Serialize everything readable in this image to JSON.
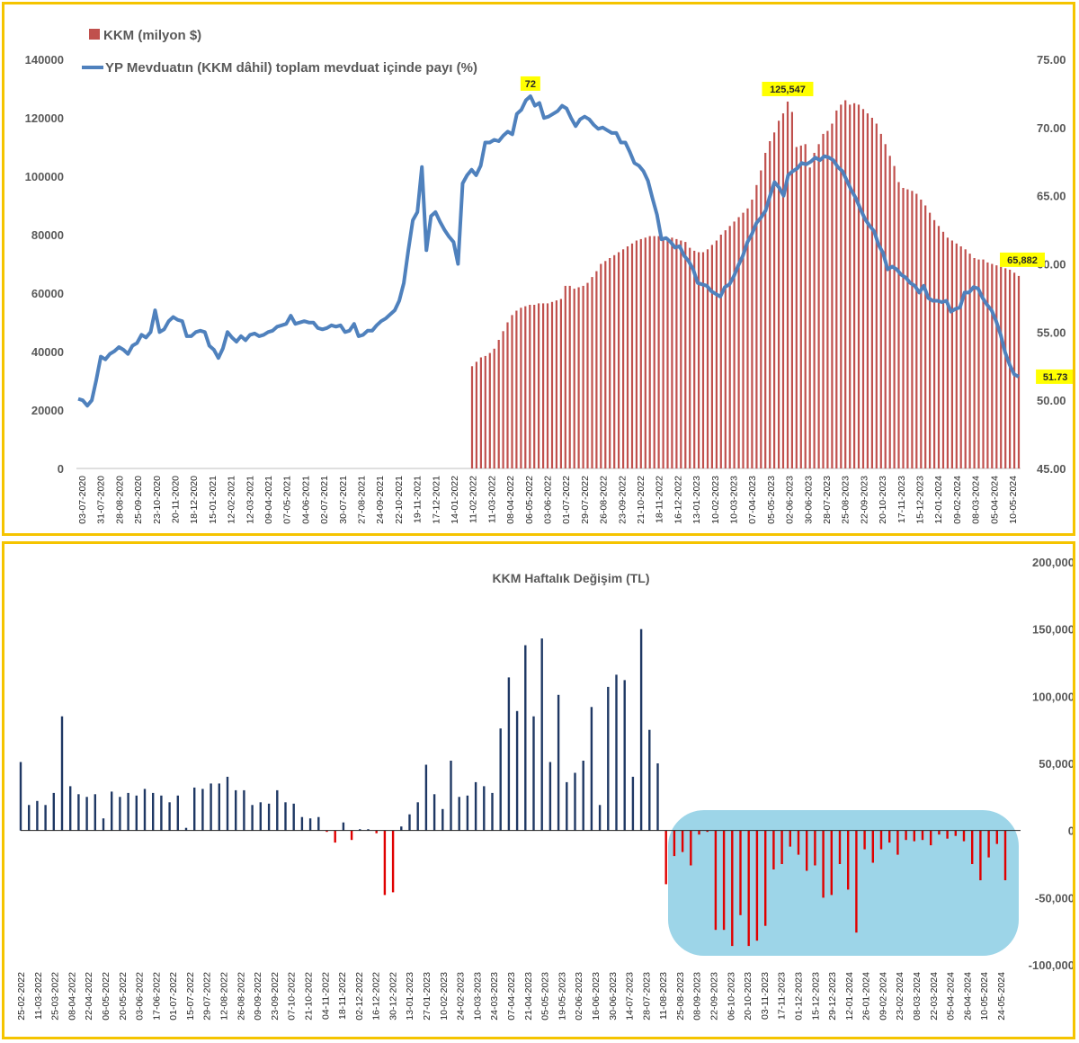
{
  "chart_data": [
    {
      "type": "bar+line",
      "title": "",
      "legend": {
        "placement": "top-left",
        "entries": [
          "KKM (milyon $)",
          "YP Mevduatın (KKM dâhil) toplam mevduat içinde payı (%)"
        ]
      },
      "colors": {
        "bar": "#c0504d",
        "line": "#4f81bd",
        "callout": "#ffff00"
      },
      "y_left": {
        "ylim": [
          0,
          140000
        ],
        "ticks": [
          "0",
          "20000",
          "40000",
          "60000",
          "80000",
          "100000",
          "120000",
          "140000"
        ]
      },
      "y_right": {
        "ylim": [
          45,
          75
        ],
        "ticks": [
          "45.00",
          "50.00",
          "55.00",
          "60.00",
          "65.00",
          "70.00",
          "75.00"
        ]
      },
      "x_tick_labels": [
        "03-07-2020",
        "31-07-2020",
        "28-08-2020",
        "25-09-2020",
        "23-10-2020",
        "20-11-2020",
        "18-12-2020",
        "15-01-2021",
        "12-02-2021",
        "12-03-2021",
        "09-04-2021",
        "07-05-2021",
        "04-06-2021",
        "02-07-2021",
        "30-07-2021",
        "27-08-2021",
        "24-09-2021",
        "22-10-2021",
        "19-11-2021",
        "17-12-2021",
        "14-01-2022",
        "11-02-2022",
        "11-03-2022",
        "08-04-2022",
        "06-05-2022",
        "03-06-2022",
        "01-07-2022",
        "29-07-2022",
        "26-08-2022",
        "23-09-2022",
        "21-10-2022",
        "18-11-2022",
        "16-12-2022",
        "13-01-2023",
        "10-02-2023",
        "10-03-2023",
        "07-04-2023",
        "05-05-2023",
        "02-06-2023",
        "30-06-2023",
        "28-07-2023",
        "25-08-2023",
        "22-09-2023",
        "20-10-2023",
        "17-11-2023",
        "15-12-2023",
        "12-01-2024",
        "09-02-2024",
        "08-03-2024",
        "05-04-2024",
        "10-05-2024"
      ],
      "line_series": {
        "name": "YP Mevduatın (KKM dâhil) toplam mevduat içinde payı (%)",
        "values": [
          50.1,
          50.0,
          49.6,
          50.0,
          51.5,
          53.2,
          53.0,
          53.4,
          53.6,
          53.9,
          53.7,
          53.4,
          54.0,
          54.2,
          54.8,
          54.6,
          55.0,
          56.6,
          55.0,
          55.2,
          55.8,
          56.1,
          55.9,
          55.8,
          54.7,
          54.7,
          55.0,
          55.1,
          55.0,
          54.0,
          53.7,
          53.1,
          53.8,
          55.0,
          54.6,
          54.3,
          54.7,
          54.4,
          54.8,
          54.9,
          54.7,
          54.8,
          55.0,
          55.1,
          55.4,
          55.5,
          55.6,
          56.2,
          55.6,
          55.7,
          55.8,
          55.7,
          55.7,
          55.3,
          55.2,
          55.3,
          55.5,
          55.4,
          55.5,
          55.0,
          55.1,
          55.6,
          54.7,
          54.8,
          55.1,
          55.1,
          55.5,
          55.8,
          56.0,
          56.3,
          56.6,
          57.3,
          58.6,
          61.0,
          63.2,
          63.8,
          67.1,
          61.0,
          63.5,
          63.8,
          63.1,
          62.5,
          62.0,
          61.6,
          60.0,
          65.9,
          66.5,
          66.9,
          66.5,
          67.2,
          68.9,
          68.9,
          69.1,
          69.0,
          69.4,
          69.7,
          69.5,
          71.0,
          71.3,
          72.0,
          72.3,
          71.6,
          71.8,
          70.7,
          70.8,
          71.0,
          71.2,
          71.6,
          71.4,
          70.7,
          70.1,
          70.6,
          70.8,
          70.6,
          70.2,
          69.9,
          70.0,
          69.8,
          69.6,
          69.6,
          68.9,
          68.9,
          68.2,
          67.4,
          67.2,
          66.8,
          66.1,
          64.8,
          63.6,
          61.8,
          61.9,
          61.6,
          61.2,
          61.3,
          60.6,
          60.2,
          59.6,
          58.6,
          58.5,
          58.4,
          58.0,
          57.8,
          57.6,
          58.3,
          58.5,
          59.1,
          59.9,
          60.6,
          61.6,
          62.2,
          63.0,
          63.4,
          63.9,
          65.0,
          66.0,
          65.6,
          65.0,
          66.5,
          66.8,
          67.0,
          67.4,
          67.3,
          67.5,
          67.8,
          67.6,
          67.9,
          67.8,
          67.6,
          67.1,
          66.8,
          66.1,
          65.4,
          64.8,
          64.0,
          63.3,
          62.8,
          62.4,
          61.4,
          60.8,
          59.6,
          59.8,
          59.6,
          59.2,
          59.0,
          58.6,
          58.4,
          57.9,
          58.4,
          57.5,
          57.3,
          57.3,
          57.2,
          57.3,
          56.5,
          56.7,
          56.8,
          57.9,
          57.9,
          58.3,
          58.2,
          57.5,
          57.0,
          56.6,
          55.8,
          54.8,
          53.5,
          52.6,
          51.9,
          51.73
        ]
      },
      "bar_series": {
        "name": "KKM (milyon $)",
        "start_label": "11-02-2022",
        "values": [
          35000,
          36500,
          38000,
          38500,
          39500,
          41000,
          44000,
          47000,
          50000,
          52500,
          54000,
          55000,
          55500,
          56000,
          56000,
          56500,
          56500,
          56500,
          57000,
          57500,
          58000,
          62500,
          62500,
          61500,
          62000,
          62500,
          63500,
          65500,
          67500,
          70000,
          71000,
          72000,
          73000,
          74000,
          75000,
          76000,
          77000,
          78000,
          78500,
          79000,
          79500,
          79500,
          79500,
          79000,
          79000,
          79000,
          78500,
          78000,
          77500,
          75500,
          74500,
          74000,
          74000,
          75000,
          76500,
          78000,
          80000,
          81500,
          83000,
          84500,
          86000,
          87500,
          89000,
          92000,
          97000,
          102000,
          108000,
          112000,
          115000,
          119000,
          121500,
          125547,
          122000,
          110000,
          110500,
          111000,
          103000,
          108000,
          111000,
          114500,
          115500,
          118000,
          122500,
          124500,
          126000,
          124500,
          125000,
          124500,
          123000,
          121500,
          120000,
          118000,
          114500,
          111000,
          107000,
          103500,
          98000,
          96000,
          95500,
          95000,
          94000,
          92000,
          90000,
          87500,
          85000,
          83000,
          81000,
          79000,
          78000,
          77000,
          76000,
          75000,
          73500,
          72000,
          71500,
          71500,
          70500,
          70000,
          69500,
          69000,
          68500,
          68000,
          67000,
          65882
        ]
      },
      "callouts": [
        {
          "text": "72",
          "series": "line",
          "x_index": 100,
          "value": 72.3
        },
        {
          "text": "125,547",
          "series": "bar",
          "bar_index": 71,
          "value": 125547
        },
        {
          "text": "65,882",
          "series": "bar",
          "bar_index": 123,
          "value": 65882
        },
        {
          "text": "51.73",
          "series": "line",
          "x_index": 211,
          "value": 51.73
        }
      ]
    },
    {
      "type": "bar",
      "title": "KKM Haftalık Değişim (TL)",
      "colors": {
        "positive": "#1f3864",
        "negative": "#e00000",
        "highlight": "#9dd5e8"
      },
      "y_right": {
        "ylim": [
          -100000,
          200000
        ],
        "ticks": [
          "-100,000",
          "-50,000",
          "0",
          "50,000",
          "100,000",
          "150,000",
          "200,000"
        ]
      },
      "x_tick_labels": [
        "25-02-2022",
        "11-03-2022",
        "25-03-2022",
        "08-04-2022",
        "22-04-2022",
        "06-05-2022",
        "20-05-2022",
        "03-06-2022",
        "17-06-2022",
        "01-07-2022",
        "15-07-2022",
        "29-07-2022",
        "12-08-2022",
        "26-08-2022",
        "09-09-2022",
        "23-09-2022",
        "07-10-2022",
        "21-10-2022",
        "04-11-2022",
        "18-11-2022",
        "02-12-2022",
        "16-12-2022",
        "30-12-2022",
        "13-01-2023",
        "27-01-2023",
        "10-02-2023",
        "24-02-2023",
        "10-03-2023",
        "24-03-2023",
        "07-04-2023",
        "21-04-2023",
        "05-05-2023",
        "19-05-2023",
        "02-06-2023",
        "16-06-2023",
        "30-06-2023",
        "14-07-2023",
        "28-07-2023",
        "11-08-2023",
        "25-08-2023",
        "08-09-2023",
        "22-09-2023",
        "06-10-2023",
        "20-10-2023",
        "03-11-2023",
        "17-11-2023",
        "01-12-2023",
        "15-12-2023",
        "29-12-2023",
        "12-01-2024",
        "26-01-2024",
        "09-02-2024",
        "23-02-2024",
        "08-03-2024",
        "22-03-2024",
        "05-04-2024",
        "26-04-2024",
        "10-05-2024",
        "24-05-2024"
      ],
      "values": [
        51000,
        19000,
        22000,
        19000,
        28000,
        85000,
        33000,
        27000,
        25000,
        27000,
        9000,
        29000,
        25000,
        28000,
        26000,
        31000,
        28000,
        26000,
        21000,
        26000,
        2000,
        32000,
        31000,
        35000,
        35000,
        40000,
        30000,
        30000,
        19000,
        21000,
        20000,
        30000,
        21000,
        20000,
        10000,
        9000,
        10000,
        -1000,
        -9000,
        6000,
        -7000,
        1000,
        1000,
        -2000,
        -48000,
        -46000,
        3000,
        12000,
        21000,
        49000,
        27000,
        16000,
        52000,
        25000,
        26000,
        36000,
        33000,
        28000,
        76000,
        114000,
        89000,
        138000,
        85000,
        143000,
        51000,
        101000,
        36000,
        43000,
        52000,
        92000,
        19000,
        107000,
        116000,
        112000,
        40000,
        150000,
        75000,
        50000,
        -40000,
        -19000,
        -16000,
        -26000,
        -3000,
        -1000,
        -74000,
        -74000,
        -86000,
        -63000,
        -86000,
        -82000,
        -71000,
        -29000,
        -25000,
        -12000,
        -18000,
        -30000,
        -26000,
        -50000,
        -48000,
        -25000,
        -44000,
        -76000,
        -14000,
        -24000,
        -14000,
        -9000,
        -18000,
        -7000,
        -8000,
        -7000,
        -11000,
        -3000,
        -6000,
        -4000,
        -8000,
        -25000,
        -37000,
        -20000,
        -10000,
        -37000
      ]
    }
  ]
}
